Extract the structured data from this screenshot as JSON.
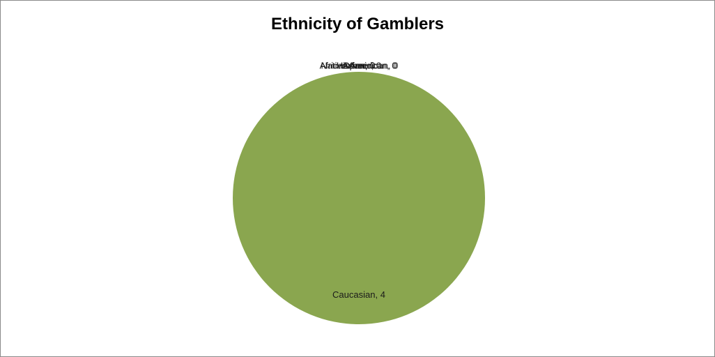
{
  "chart_data": {
    "type": "pie",
    "title": "Ethnicity of Gamblers",
    "slices": [
      {
        "label": "Caucasian",
        "value": 4,
        "color": "#8aa64f",
        "text": "Caucasian, 4"
      },
      {
        "label": "African American",
        "value": 0,
        "color": "#4f81bd",
        "text": "African American, 0"
      },
      {
        "label": "Hispanic",
        "value": 0,
        "color": "#c0504d",
        "text": "Hispanic, 0"
      },
      {
        "label": "Asian",
        "value": 0,
        "color": "#8064a2",
        "text": "Asian, 0"
      },
      {
        "label": "Native American",
        "value": 0,
        "color": "#4bacc6",
        "text": "Native American, 0"
      },
      {
        "label": "Other",
        "value": 0,
        "color": "#f79646",
        "text": "Other, 0"
      }
    ],
    "legend": "none"
  }
}
